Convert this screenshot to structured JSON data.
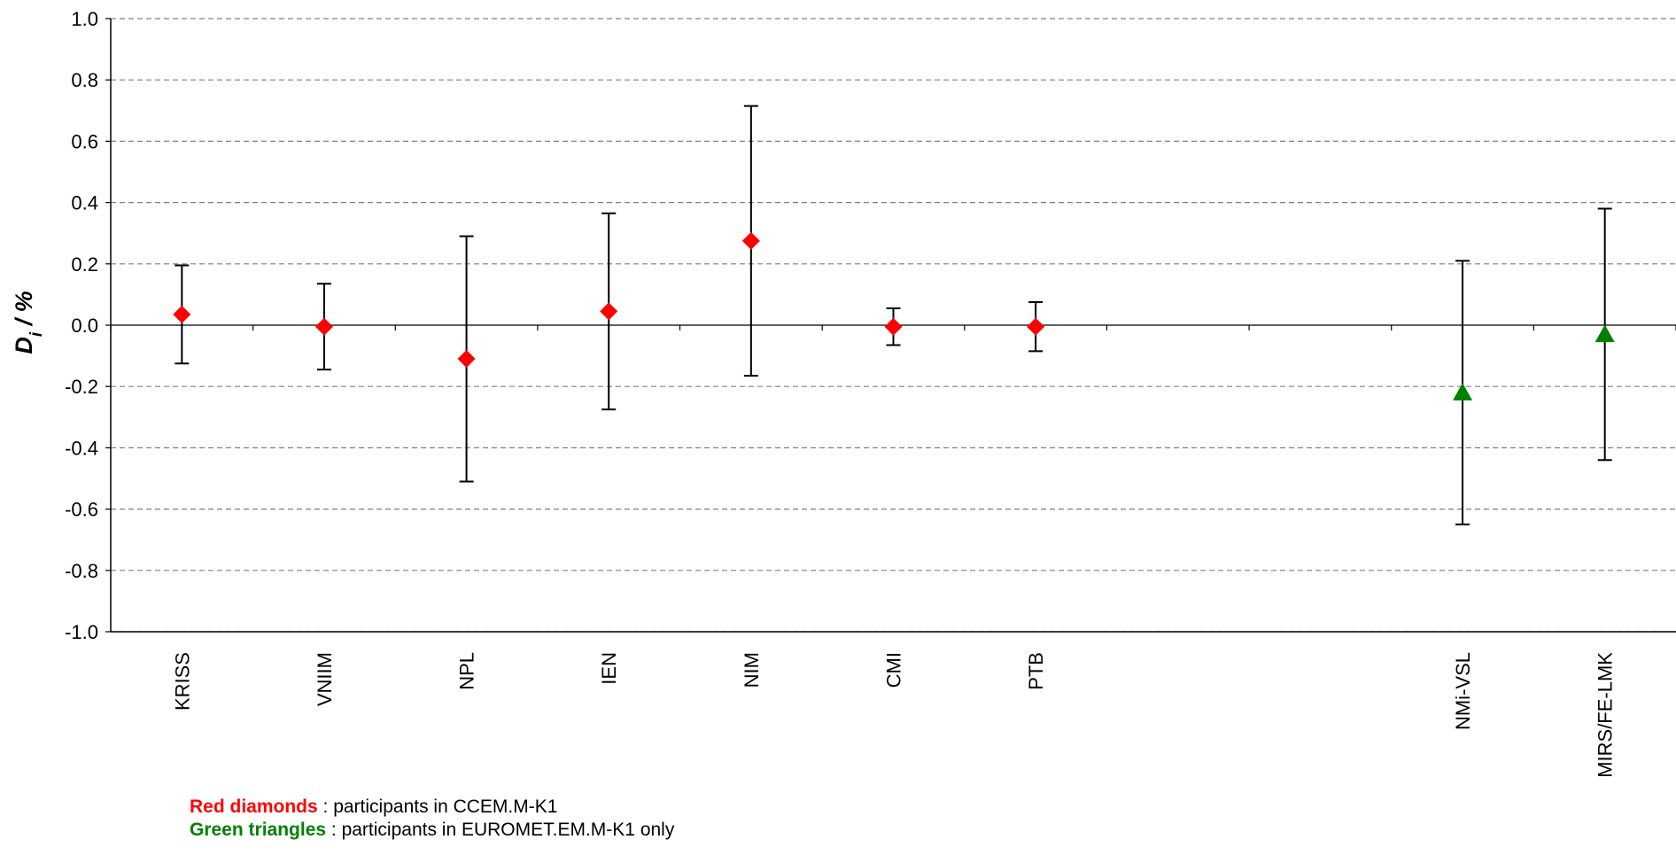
{
  "chart_data": {
    "type": "scatter",
    "ylabel": {
      "main": "D",
      "sub": "i",
      "rest": " / %"
    },
    "ylim": [
      -1.0,
      1.0
    ],
    "yticks": [
      "-1.0",
      "-0.8",
      "-0.6",
      "-0.4",
      "-0.2",
      "0.0",
      "0.2",
      "0.4",
      "0.6",
      "0.8",
      "1.0"
    ],
    "grid": true,
    "categories": [
      "KRISS",
      "VNIIM",
      "NPL",
      "IEN",
      "NIM",
      "CMI",
      "PTB",
      "",
      "",
      "NMi-VSL",
      "MIRS/FE-LMK"
    ],
    "series": [
      {
        "marker": "diamond",
        "color": "#ff0000",
        "points": [
          {
            "label": "KRISS",
            "y": 0.035,
            "upper": 0.195,
            "lower": -0.125
          },
          {
            "label": "VNIIM",
            "y": -0.005,
            "upper": 0.135,
            "lower": -0.145
          },
          {
            "label": "NPL",
            "y": -0.11,
            "upper": 0.29,
            "lower": -0.51
          },
          {
            "label": "IEN",
            "y": 0.045,
            "upper": 0.365,
            "lower": -0.275
          },
          {
            "label": "NIM",
            "y": 0.275,
            "upper": 0.715,
            "lower": -0.165
          },
          {
            "label": "CMI",
            "y": -0.005,
            "upper": 0.055,
            "lower": -0.065
          },
          {
            "label": "PTB",
            "y": -0.005,
            "upper": 0.075,
            "lower": -0.085
          }
        ]
      },
      {
        "marker": "triangle",
        "color": "#008000",
        "points": [
          {
            "label": "NMi-VSL",
            "y": -0.22,
            "upper": 0.21,
            "lower": -0.65
          },
          {
            "label": "MIRS/FE-LMK",
            "y": -0.03,
            "upper": 0.38,
            "lower": -0.44
          }
        ]
      }
    ]
  },
  "legend": {
    "red_label": "Red diamonds",
    "red_text": " : participants in CCEM.M-K1",
    "red_color": "#ff0000",
    "green_label": "Green triangles",
    "green_text": " : participants in EUROMET.EM.M-K1 only",
    "green_color": "#008000"
  }
}
